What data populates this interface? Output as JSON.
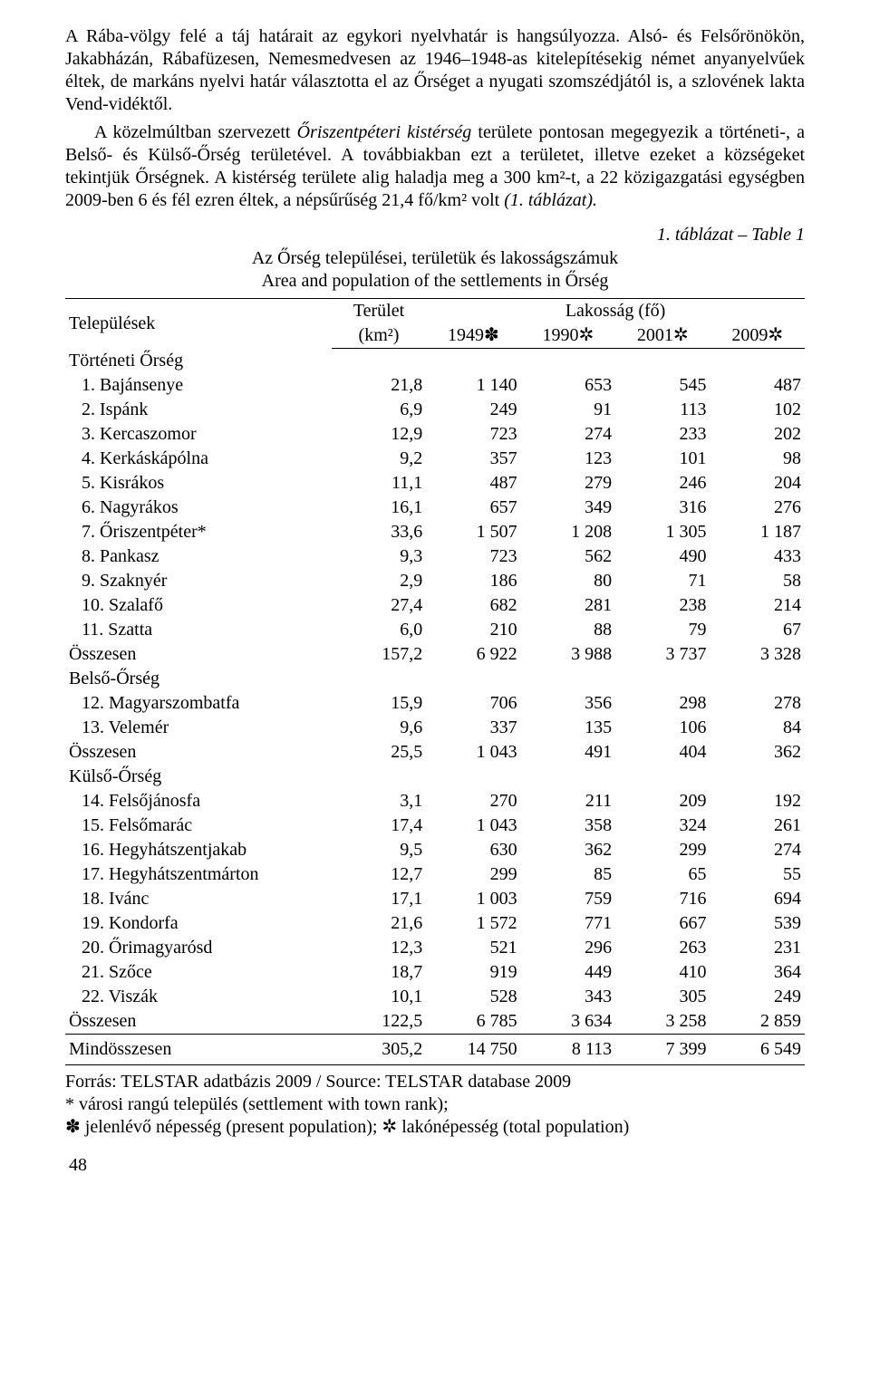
{
  "body_text": {
    "p1": "A Rába-völgy felé a táj határait az egykori nyelvhatár is hangsúlyozza. Alsó- és Felsőrönökön, Jakabházán, Rábafüzesen, Nemesmedvesen az 1946–1948-as kitelepítésekig német anyanyelvűek éltek, de markáns nyelvi határ választotta el az Őrséget a nyugati szomszédjától is, a szlovének lakta Vend-vidéktől.",
    "p2a": "A közelmúltban szervezett ",
    "p2i": "Őriszentpéteri kistérség",
    "p2b": " területe pontosan megegyezik a történeti-, a Belső- és Külső-Őrség területével. A továbbiakban ezt a területet, illetve ezeket a községeket tekintjük Őrségnek. A kistérség területe alig haladja meg a 300 km²-t, a 22 közigazgatási egységben 2009-ben 6 és fél ezren éltek, a népsűrűség 21,4 fő/km² volt ",
    "p2c": "(1. táblázat)."
  },
  "table": {
    "caption_right": "1. táblázat – Table 1",
    "caption_hu": "Az Őrség települései, területük és lakosságszámuk",
    "caption_en": "Area and population of the settlements in Őrség",
    "header": {
      "col1": "Települések",
      "col2a": "Terület",
      "col2b": "(km²)",
      "col3": "Lakosság (fő)",
      "y1": "1949✽",
      "y2": "1990✲",
      "y3": "2001✲",
      "y4": "2009✲"
    },
    "sections": [
      {
        "title": "Történeti Őrség",
        "rows": [
          {
            "name": "1. Bajánsenye",
            "area": "21,8",
            "v": [
              "1 140",
              "653",
              "545",
              "487"
            ]
          },
          {
            "name": "2. Ispánk",
            "area": "6,9",
            "v": [
              "249",
              "91",
              "113",
              "102"
            ]
          },
          {
            "name": "3. Kercaszomor",
            "area": "12,9",
            "v": [
              "723",
              "274",
              "233",
              "202"
            ]
          },
          {
            "name": "4. Kerkáskápólna",
            "area": "9,2",
            "v": [
              "357",
              "123",
              "101",
              "98"
            ]
          },
          {
            "name": "5. Kisrákos",
            "area": "11,1",
            "v": [
              "487",
              "279",
              "246",
              "204"
            ]
          },
          {
            "name": "6. Nagyrákos",
            "area": "16,1",
            "v": [
              "657",
              "349",
              "316",
              "276"
            ]
          },
          {
            "name": "7. Őriszentpéter*",
            "area": "33,6",
            "v": [
              "1 507",
              "1 208",
              "1 305",
              "1 187"
            ]
          },
          {
            "name": "8. Pankasz",
            "area": "9,3",
            "v": [
              "723",
              "562",
              "490",
              "433"
            ]
          },
          {
            "name": "9. Szaknyér",
            "area": "2,9",
            "v": [
              "186",
              "80",
              "71",
              "58"
            ]
          },
          {
            "name": "10. Szalafő",
            "area": "27,4",
            "v": [
              "682",
              "281",
              "238",
              "214"
            ]
          },
          {
            "name": "11. Szatta",
            "area": "6,0",
            "v": [
              "210",
              "88",
              "79",
              "67"
            ]
          }
        ],
        "sum": {
          "name": "Összesen",
          "area": "157,2",
          "v": [
            "6 922",
            "3 988",
            "3 737",
            "3 328"
          ]
        }
      },
      {
        "title": "Belső-Őrség",
        "rows": [
          {
            "name": "12. Magyarszombatfa",
            "area": "15,9",
            "v": [
              "706",
              "356",
              "298",
              "278"
            ]
          },
          {
            "name": "13. Velemér",
            "area": "9,6",
            "v": [
              "337",
              "135",
              "106",
              "84"
            ]
          }
        ],
        "sum": {
          "name": "Összesen",
          "area": "25,5",
          "v": [
            "1 043",
            "491",
            "404",
            "362"
          ]
        }
      },
      {
        "title": "Külső-Őrség",
        "rows": [
          {
            "name": "14. Felsőjánosfa",
            "area": "3,1",
            "v": [
              "270",
              "211",
              "209",
              "192"
            ]
          },
          {
            "name": "15. Felsőmarác",
            "area": "17,4",
            "v": [
              "1 043",
              "358",
              "324",
              "261"
            ]
          },
          {
            "name": "16. Hegyhátszentjakab",
            "area": "9,5",
            "v": [
              "630",
              "362",
              "299",
              "274"
            ]
          },
          {
            "name": "17. Hegyhátszentmárton",
            "area": "12,7",
            "v": [
              "299",
              "85",
              "65",
              "55"
            ]
          },
          {
            "name": "18. Ivánc",
            "area": "17,1",
            "v": [
              "1 003",
              "759",
              "716",
              "694"
            ]
          },
          {
            "name": "19. Kondorfa",
            "area": "21,6",
            "v": [
              "1 572",
              "771",
              "667",
              "539"
            ]
          },
          {
            "name": "20. Őrimagyarósd",
            "area": "12,3",
            "v": [
              "521",
              "296",
              "263",
              "231"
            ]
          },
          {
            "name": "21. Szőce",
            "area": "18,7",
            "v": [
              "919",
              "449",
              "410",
              "364"
            ]
          },
          {
            "name": "22. Viszák",
            "area": "10,1",
            "v": [
              "528",
              "343",
              "305",
              "249"
            ]
          }
        ],
        "sum": {
          "name": "Összesen",
          "area": "122,5",
          "v": [
            "6 785",
            "3 634",
            "3 258",
            "2 859"
          ]
        }
      }
    ],
    "grand": {
      "name": "Mindösszesen",
      "area": "305,2",
      "v": [
        "14 750",
        "8 113",
        "7 399",
        "6 549"
      ]
    }
  },
  "footnotes": {
    "f1": "Forrás: TELSTAR adatbázis 2009 / Source: TELSTAR database 2009",
    "f2": "* városi rangú település (settlement with town rank);",
    "f3": "✽ jelenlévő népesség (present population); ✲ lakónépesség (total population)"
  },
  "page_number": "48"
}
